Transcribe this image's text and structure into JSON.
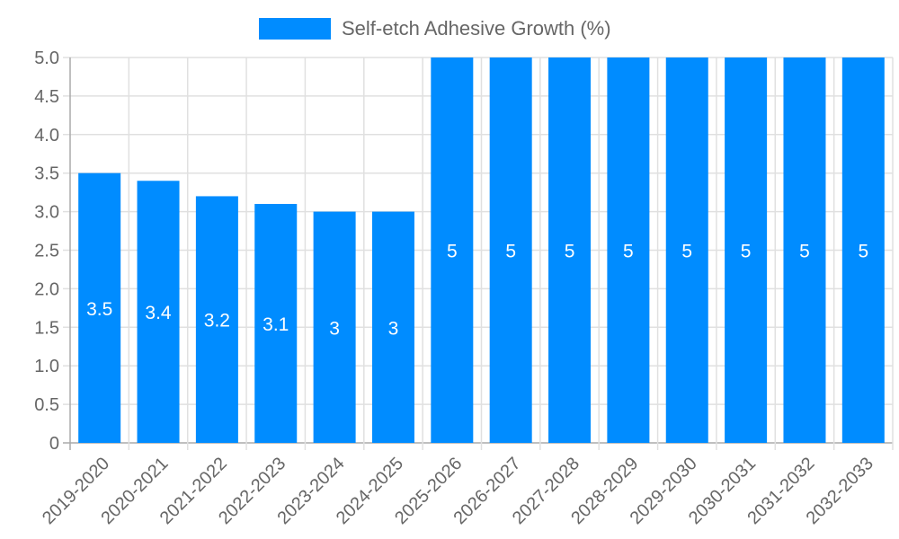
{
  "chart_data": {
    "type": "bar",
    "title": "",
    "legend": [
      {
        "label": "Self-etch Adhesive Growth (%)",
        "color": "#008cff"
      }
    ],
    "legend_position": "top",
    "categories": [
      "2019-2020",
      "2020-2021",
      "2021-2022",
      "2022-2023",
      "2023-2024",
      "2024-2025",
      "2025-2026",
      "2026-2027",
      "2027-2028",
      "2028-2029",
      "2029-2030",
      "2030-2031",
      "2031-2032",
      "2032-2033"
    ],
    "series": [
      {
        "name": "Self-etch Adhesive Growth (%)",
        "color": "#008cff",
        "values": [
          3.5,
          3.4,
          3.2,
          3.1,
          3,
          3,
          5,
          5,
          5,
          5,
          5,
          5,
          5,
          5
        ],
        "data_labels": [
          "3.5",
          "3.4",
          "3.2",
          "3.1",
          "3",
          "3",
          "5",
          "5",
          "5",
          "5",
          "5",
          "5",
          "5",
          "5"
        ]
      }
    ],
    "xlabel": "",
    "ylabel": "",
    "ylim": [
      0,
      5.0
    ],
    "y_ticks": [
      "0",
      "0.5",
      "1.0",
      "1.5",
      "2.0",
      "2.5",
      "3.0",
      "3.5",
      "4.0",
      "4.5",
      "5.0"
    ],
    "grid": true,
    "x_tick_rotation": -45
  },
  "colors": {
    "bar": "#008cff",
    "grid": "#e0e0e0",
    "axis": "#aaaaaa",
    "tick_text": "#666666",
    "data_label": "#ffffff"
  }
}
